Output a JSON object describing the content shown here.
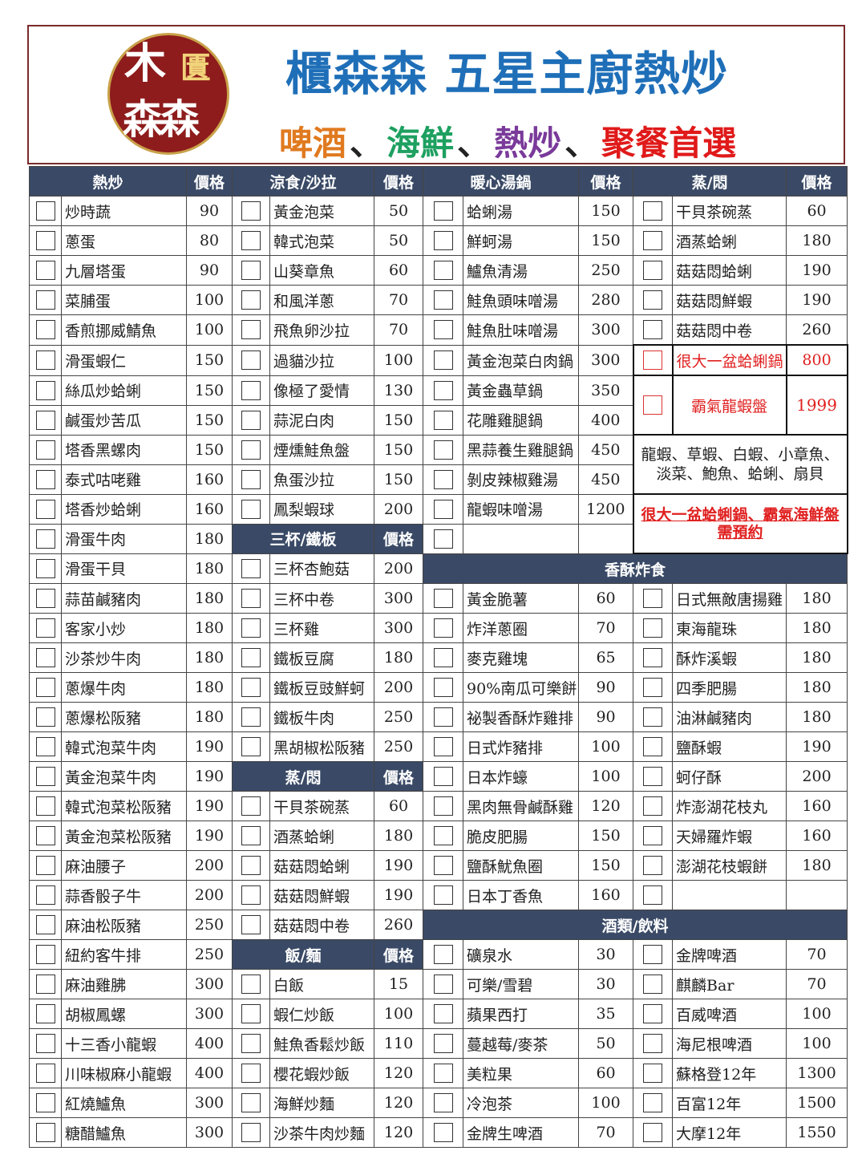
{
  "header": {
    "logo": {
      "text": "木匱森森"
    },
    "title": "櫃森森 五星主廚熱炒",
    "subtitle": [
      {
        "text": "啤酒",
        "color": "#e07a20"
      },
      {
        "text": "、",
        "color": "#222222"
      },
      {
        "text": "海鮮",
        "color": "#1ea060"
      },
      {
        "text": "、",
        "color": "#222222"
      },
      {
        "text": "熱炒",
        "color": "#7a3a9a"
      },
      {
        "text": "、",
        "color": "#222222"
      },
      {
        "text": "聚餐首選",
        "color": "#e01a1a"
      }
    ]
  },
  "price_label": "價格",
  "col1": {
    "title": "熱炒",
    "items": [
      [
        "炒時蔬",
        "90"
      ],
      [
        "蔥蛋",
        "80"
      ],
      [
        "九層塔蛋",
        "90"
      ],
      [
        "菜脯蛋",
        "100"
      ],
      [
        "香煎挪威鯖魚",
        "100"
      ],
      [
        "滑蛋蝦仁",
        "150"
      ],
      [
        "絲瓜炒蛤蜊",
        "150"
      ],
      [
        "鹹蛋炒苦瓜",
        "150"
      ],
      [
        "塔香黑螺肉",
        "150"
      ],
      [
        "泰式咕咾雞",
        "160"
      ],
      [
        "塔香炒蛤蜊",
        "160"
      ],
      [
        "滑蛋牛肉",
        "180"
      ],
      [
        "滑蛋干貝",
        "180"
      ],
      [
        "蒜苗鹹豬肉",
        "180"
      ],
      [
        "客家小炒",
        "180"
      ],
      [
        "沙茶炒牛肉",
        "180"
      ],
      [
        "蔥爆牛肉",
        "180"
      ],
      [
        "蔥爆松阪豬",
        "180"
      ],
      [
        "韓式泡菜牛肉",
        "190"
      ],
      [
        "黃金泡菜牛肉",
        "190"
      ],
      [
        "韓式泡菜松阪豬",
        "190"
      ],
      [
        "黃金泡菜松阪豬",
        "190"
      ],
      [
        "麻油腰子",
        "200"
      ],
      [
        "蒜香骰子牛",
        "200"
      ],
      [
        "麻油松阪豬",
        "250"
      ],
      [
        "紐約客牛排",
        "250"
      ],
      [
        "麻油雞胇",
        "300"
      ],
      [
        "胡椒鳳螺",
        "300"
      ],
      [
        "十三香小龍蝦",
        "400"
      ],
      [
        "川味椒麻小龍蝦",
        "400"
      ],
      [
        "紅燒鱸魚",
        "300"
      ],
      [
        "糖醋鱸魚",
        "300"
      ]
    ]
  },
  "col2": {
    "title": "涼食/沙拉",
    "items": [
      [
        "黃金泡菜",
        "50"
      ],
      [
        "韓式泡菜",
        "50"
      ],
      [
        "山葵章魚",
        "60"
      ],
      [
        "和風洋蔥",
        "70"
      ],
      [
        "飛魚卵沙拉",
        "70"
      ],
      [
        "過貓沙拉",
        "100"
      ],
      [
        "像極了愛情",
        "130"
      ],
      [
        "蒜泥白肉",
        "150"
      ],
      [
        "煙燻鮭魚盤",
        "150"
      ],
      [
        "魚蛋沙拉",
        "150"
      ],
      [
        "鳳梨蝦球",
        "200"
      ]
    ],
    "sanbei_title": "三杯/鐵板",
    "sanbei": [
      [
        "三杯杏鮑菇",
        "200"
      ],
      [
        "三杯中卷",
        "300"
      ],
      [
        "三杯雞",
        "300"
      ],
      [
        "鐵板豆腐",
        "180"
      ],
      [
        "鐵板豆豉鮮蚵",
        "200"
      ],
      [
        "鐵板牛肉",
        "250"
      ],
      [
        "黑胡椒松阪豬",
        "250"
      ]
    ],
    "steam_title": "蒸/悶",
    "steam": [
      [
        "干貝茶碗蒸",
        "60"
      ],
      [
        "酒蒸蛤蜊",
        "180"
      ],
      [
        "菇菇悶蛤蜊",
        "190"
      ],
      [
        "菇菇悶鮮蝦",
        "190"
      ],
      [
        "菇菇悶中卷",
        "260"
      ]
    ],
    "rice_title": "飯/麵",
    "rice": [
      [
        "白飯",
        "15"
      ],
      [
        "蝦仁炒飯",
        "100"
      ],
      [
        "鮭魚香鬆炒飯",
        "110"
      ],
      [
        "櫻花蝦炒飯",
        "120"
      ],
      [
        "海鮮炒麵",
        "120"
      ],
      [
        "沙茶牛肉炒麵",
        "120"
      ]
    ]
  },
  "col3": {
    "title": "暖心湯鍋",
    "items": [
      [
        "蛤蜊湯",
        "150"
      ],
      [
        "鮮蚵湯",
        "150"
      ],
      [
        "鱸魚清湯",
        "250"
      ],
      [
        "鮭魚頭味噌湯",
        "280"
      ],
      [
        "鮭魚肚味噌湯",
        "300"
      ],
      [
        "黃金泡菜白肉鍋",
        "300"
      ],
      [
        "黃金蟲草鍋",
        "350"
      ],
      [
        "花雕雞腿鍋",
        "400"
      ],
      [
        "黑蒜養生雞腿鍋",
        "450"
      ],
      [
        "剝皮辣椒雞湯",
        "450"
      ],
      [
        "龍蝦味噌湯",
        "1200"
      ],
      [
        "",
        ""
      ]
    ]
  },
  "col4": {
    "title": "蒸/悶",
    "items": [
      [
        "干貝茶碗蒸",
        "60"
      ],
      [
        "酒蒸蛤蜊",
        "180"
      ],
      [
        "菇菇悶蛤蜊",
        "190"
      ],
      [
        "菇菇悶鮮蝦",
        "190"
      ],
      [
        "菇菇悶中卷",
        "260"
      ]
    ],
    "specials": [
      [
        "很大一盆蛤蜊鍋",
        "800"
      ],
      [
        "霸氣龍蝦盤",
        "1999"
      ]
    ],
    "special_desc": "龍蝦、草蝦、白蝦、小章魚、淡菜、鮑魚、蛤蜊、扇貝",
    "special_notice": "很大一盆蛤蜊鍋、霸氣海鮮盤需預約"
  },
  "fried": {
    "title": "香酥炸食",
    "left": [
      [
        "黃金脆薯",
        "60"
      ],
      [
        "炸洋蔥圈",
        "70"
      ],
      [
        "麥克雞塊",
        "65"
      ],
      [
        "90%南瓜可樂餅",
        "90"
      ],
      [
        "祕製香酥炸雞排",
        "90"
      ],
      [
        "日式炸豬排",
        "100"
      ],
      [
        "日本炸蠔",
        "100"
      ],
      [
        "黑肉無骨鹹酥雞",
        "120"
      ],
      [
        "脆皮肥腸",
        "150"
      ],
      [
        "鹽酥魷魚圈",
        "150"
      ],
      [
        "日本丁香魚",
        "160"
      ]
    ],
    "right": [
      [
        "日式無敵唐揚雞",
        "180"
      ],
      [
        "東海龍珠",
        "180"
      ],
      [
        "酥炸溪蝦",
        "180"
      ],
      [
        "四季肥腸",
        "180"
      ],
      [
        "油淋鹹豬肉",
        "180"
      ],
      [
        "鹽酥蝦",
        "190"
      ],
      [
        "蚵仔酥",
        "200"
      ],
      [
        "炸澎湖花枝丸",
        "160"
      ],
      [
        "天婦羅炸蝦",
        "160"
      ],
      [
        "澎湖花枝蝦餅",
        "180"
      ],
      [
        "",
        ""
      ]
    ]
  },
  "drinks": {
    "title": "酒類/飲料",
    "left": [
      [
        "礦泉水",
        "30"
      ],
      [
        "可樂/雪碧",
        "30"
      ],
      [
        "蘋果西打",
        "35"
      ],
      [
        "蔓越莓/麥茶",
        "50"
      ],
      [
        "美粒果",
        "60"
      ],
      [
        "冷泡茶",
        "100"
      ],
      [
        "金牌生啤酒",
        "70"
      ]
    ],
    "right": [
      [
        "金牌啤酒",
        "70"
      ],
      [
        "麒麟Bar",
        "70"
      ],
      [
        "百威啤酒",
        "100"
      ],
      [
        "海尼根啤酒",
        "100"
      ],
      [
        "蘇格登12年",
        "1300"
      ],
      [
        "百富12年",
        "1500"
      ],
      [
        "大摩12年",
        "1550"
      ]
    ]
  }
}
